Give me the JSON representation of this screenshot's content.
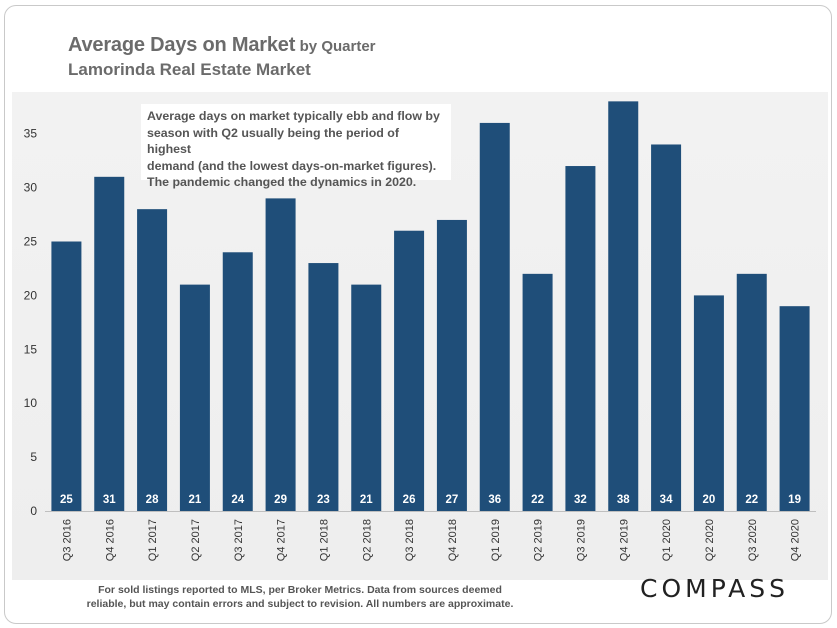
{
  "header": {
    "title": "Average Days on Market",
    "title_suffix": "by Quarter",
    "subtitle": "Lamorinda Real Estate Market"
  },
  "annotation": {
    "line1": "Average days on market typically ebb and flow by",
    "line2": "season with Q2 usually being the period of highest",
    "line3": "demand (and the lowest days-on-market figures).",
    "line4": "The pandemic changed the dynamics in 2020."
  },
  "footnote": {
    "line1": "For sold listings reported to MLS, per Broker Metrics. Data from sources deemed",
    "line2": "reliable, but may contain errors and subject to revision. All numbers are approximate."
  },
  "logo": "COMPASS",
  "colors": {
    "bar": "#1f4e79",
    "label": "#ffffff",
    "axis_text": "#333333"
  },
  "chart_data": {
    "type": "bar",
    "categories": [
      "Q3 2016",
      "Q4 2016",
      "Q1 2017",
      "Q2 2017",
      "Q3 2017",
      "Q4 2017",
      "Q1 2018",
      "Q2 2018",
      "Q3 2018",
      "Q4 2018",
      "Q1 2019",
      "Q2 2019",
      "Q3 2019",
      "Q4 2019",
      "Q1 2020",
      "Q2 2020",
      "Q3 2020",
      "Q4 2020"
    ],
    "values": [
      25,
      31,
      28,
      21,
      24,
      29,
      23,
      21,
      26,
      27,
      36,
      22,
      32,
      38,
      34,
      20,
      22,
      19
    ],
    "yticks": [
      0,
      5,
      10,
      15,
      20,
      25,
      30,
      35
    ],
    "ylim": [
      0,
      38
    ],
    "grid": false,
    "data_labels": "inside-base"
  }
}
